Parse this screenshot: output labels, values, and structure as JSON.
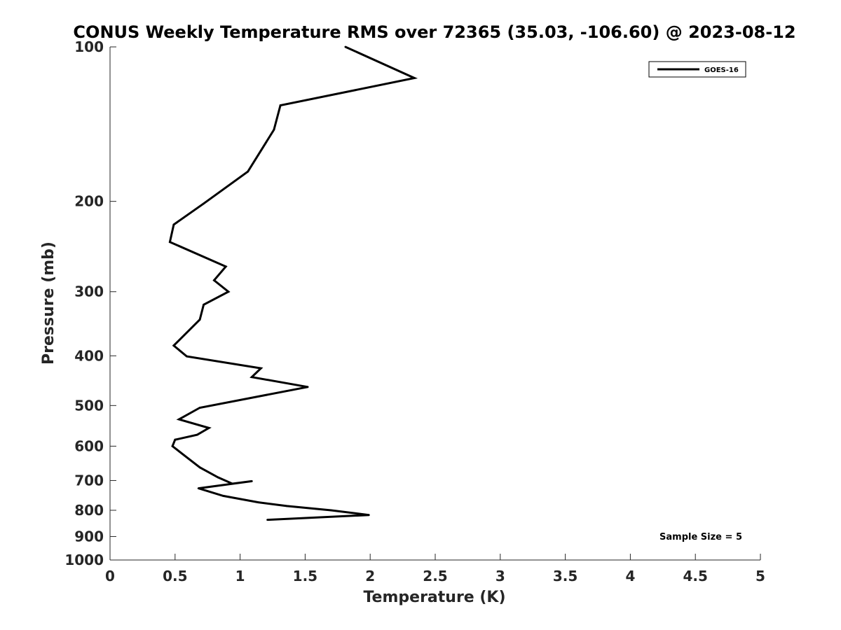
{
  "chart_data": {
    "type": "line",
    "title": "CONUS Weekly Temperature RMS over 72365 (35.03, -106.60) @ 2023-08-12",
    "xlabel": "Temperature (K)",
    "ylabel": "Pressure (mb)",
    "xlim": [
      0,
      5
    ],
    "ylim": [
      100,
      1000
    ],
    "y_scale": "log",
    "y_reversed": true,
    "x_ticks": [
      0,
      0.5,
      1,
      1.5,
      2,
      2.5,
      3,
      3.5,
      4,
      4.5,
      5
    ],
    "x_tick_labels": [
      "0",
      "0.5",
      "1",
      "1.5",
      "2",
      "2.5",
      "3",
      "3.5",
      "4",
      "4.5",
      "5"
    ],
    "y_ticks": [
      100,
      200,
      300,
      400,
      500,
      600,
      700,
      800,
      900,
      1000
    ],
    "y_tick_labels": [
      "100",
      "200",
      "300",
      "400",
      "500",
      "600",
      "700",
      "800",
      "900",
      "1000"
    ],
    "grid": false,
    "legend_position": "top-right",
    "series": [
      {
        "name": "GOES-16",
        "color": "#000000",
        "points": [
          {
            "x": 1.81,
            "y": 100
          },
          {
            "x": 2.34,
            "y": 115
          },
          {
            "x": 1.31,
            "y": 130
          },
          {
            "x": 1.26,
            "y": 145
          },
          {
            "x": 1.06,
            "y": 175
          },
          {
            "x": 0.72,
            "y": 202
          },
          {
            "x": 0.49,
            "y": 222
          },
          {
            "x": 0.46,
            "y": 240
          },
          {
            "x": 0.89,
            "y": 268
          },
          {
            "x": 0.8,
            "y": 285
          },
          {
            "x": 0.91,
            "y": 300
          },
          {
            "x": 0.72,
            "y": 318
          },
          {
            "x": 0.69,
            "y": 340
          },
          {
            "x": 0.49,
            "y": 382
          },
          {
            "x": 0.59,
            "y": 401
          },
          {
            "x": 1.16,
            "y": 423
          },
          {
            "x": 1.09,
            "y": 440
          },
          {
            "x": 1.52,
            "y": 460
          },
          {
            "x": 0.69,
            "y": 505
          },
          {
            "x": 0.53,
            "y": 532
          },
          {
            "x": 0.76,
            "y": 553
          },
          {
            "x": 0.67,
            "y": 570
          },
          {
            "x": 0.5,
            "y": 583
          },
          {
            "x": 0.48,
            "y": 600
          },
          {
            "x": 0.57,
            "y": 625
          },
          {
            "x": 0.69,
            "y": 660
          },
          {
            "x": 0.83,
            "y": 690
          },
          {
            "x": 0.94,
            "y": 710
          },
          {
            "x": 1.09,
            "y": 702
          },
          {
            "x": 0.68,
            "y": 725
          },
          {
            "x": 0.87,
            "y": 750
          },
          {
            "x": 1.14,
            "y": 772
          },
          {
            "x": 1.36,
            "y": 785
          },
          {
            "x": 1.7,
            "y": 800
          },
          {
            "x": 1.99,
            "y": 817
          },
          {
            "x": 1.21,
            "y": 835
          }
        ]
      }
    ],
    "annotation": "Sample Size = 5"
  }
}
